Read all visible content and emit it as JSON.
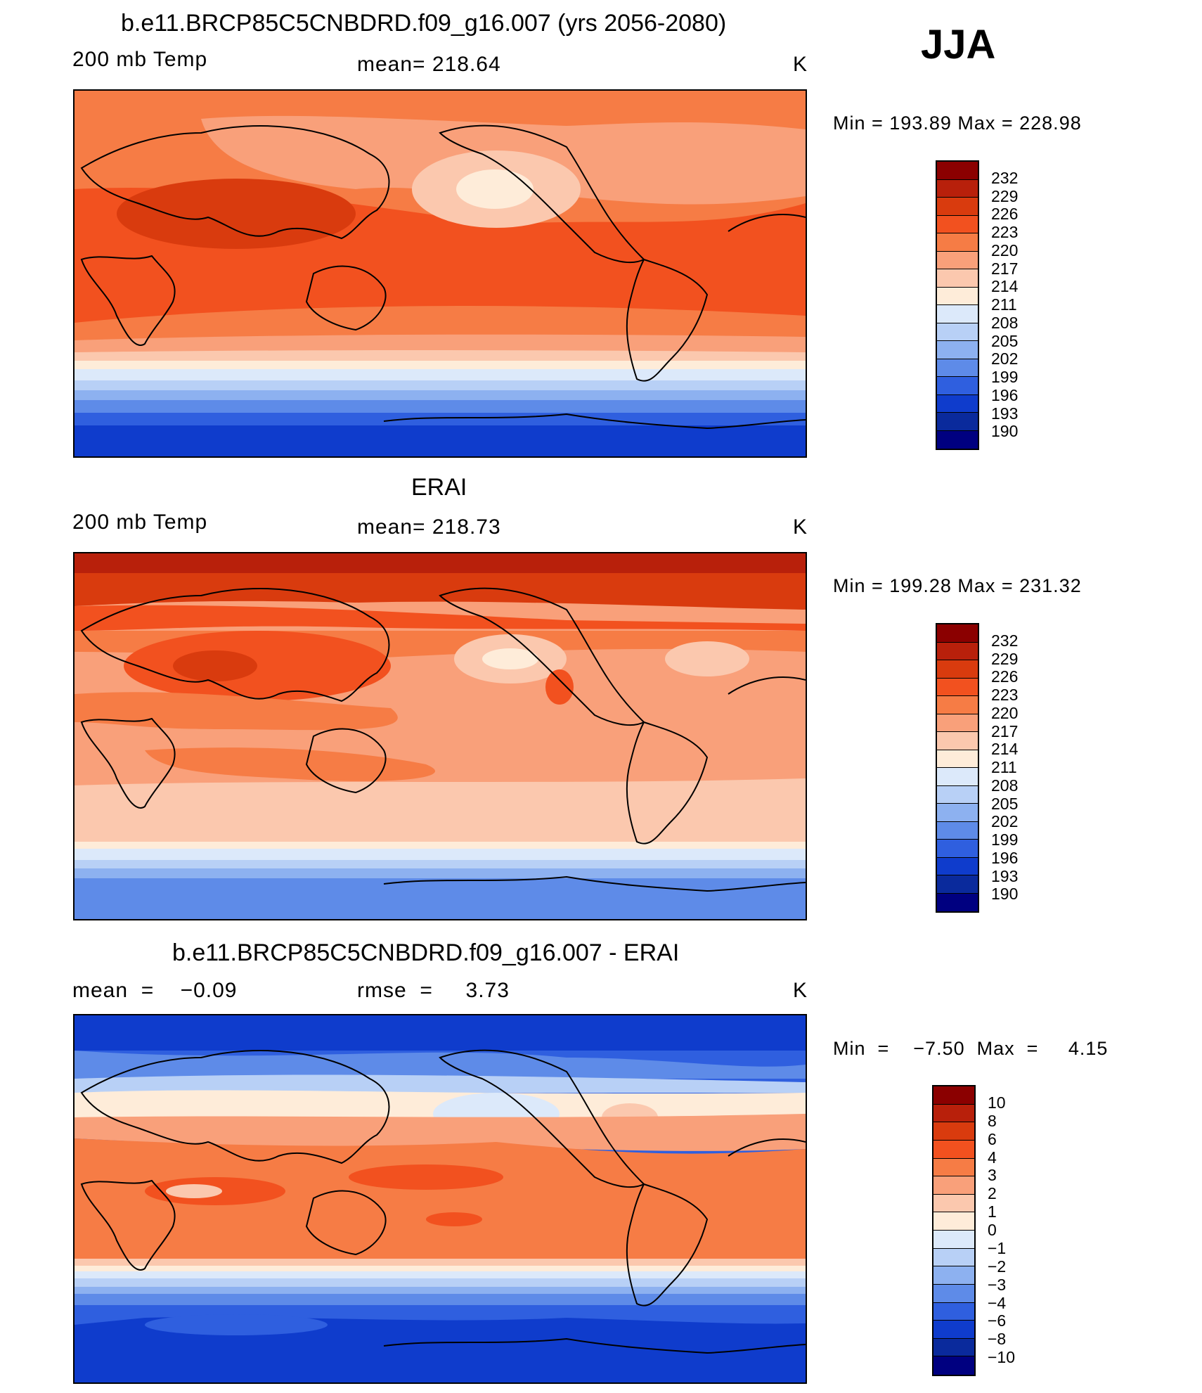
{
  "figure": {
    "season": "JJA",
    "panels": [
      {
        "id": "model",
        "title": "b.e11.BRCP85C5CNBDRD.f09_g16.007 (yrs 2056-2080)",
        "left_label": "200 mb Temp",
        "center_label": "mean=  218.64",
        "units": "K",
        "minmax": "Min  =  193.89  Max  =  228.98",
        "colorbar": {
          "labels": [
            "232",
            "229",
            "226",
            "223",
            "220",
            "217",
            "214",
            "211",
            "208",
            "205",
            "202",
            "199",
            "196",
            "193",
            "190"
          ],
          "colors": [
            "#8b0000",
            "#b8200b",
            "#d93b0e",
            "#f2511f",
            "#f67c45",
            "#f9a07a",
            "#fbc8ae",
            "#feecd9",
            "#dce9fa",
            "#b8d0f6",
            "#8db1f0",
            "#5e8be8",
            "#2f5fdf",
            "#0f3ccc",
            "#0a2a9c",
            "#000080"
          ]
        }
      },
      {
        "id": "obs",
        "title": "ERAI",
        "left_label": "200 mb Temp",
        "center_label": "mean=  218.73",
        "units": "K",
        "minmax": "Min  =  199.28  Max  =  231.32",
        "colorbar": {
          "labels": [
            "232",
            "229",
            "226",
            "223",
            "220",
            "217",
            "214",
            "211",
            "208",
            "205",
            "202",
            "199",
            "196",
            "193",
            "190"
          ],
          "colors": [
            "#8b0000",
            "#b8200b",
            "#d93b0e",
            "#f2511f",
            "#f67c45",
            "#f9a07a",
            "#fbc8ae",
            "#feecd9",
            "#dce9fa",
            "#b8d0f6",
            "#8db1f0",
            "#5e8be8",
            "#2f5fdf",
            "#0f3ccc",
            "#0a2a9c",
            "#000080"
          ]
        }
      },
      {
        "id": "diff",
        "title": "b.e11.BRCP85C5CNBDRD.f09_g16.007 - ERAI",
        "left_label": "mean  =    −0.09",
        "center_label": "rmse  =     3.73",
        "units": "K",
        "minmax": "Min  =    −7.50  Max  =     4.15",
        "colorbar": {
          "labels": [
            "10",
            "8",
            "6",
            "4",
            "3",
            "2",
            "1",
            "0",
            "−1",
            "−2",
            "−3",
            "−4",
            "−6",
            "−8",
            "−10"
          ],
          "colors": [
            "#8b0000",
            "#b8200b",
            "#d93b0e",
            "#f2511f",
            "#f67c45",
            "#f9a07a",
            "#fbc8ae",
            "#feecd9",
            "#dce9fa",
            "#b8d0f6",
            "#8db1f0",
            "#5e8be8",
            "#2f5fdf",
            "#0f3ccc",
            "#0a2a9c",
            "#000080"
          ]
        }
      }
    ]
  }
}
